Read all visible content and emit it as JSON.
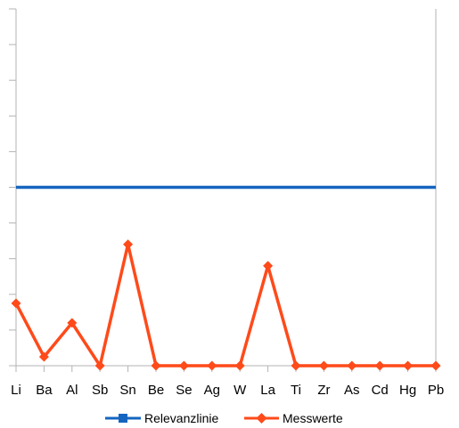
{
  "chart_data": {
    "type": "line",
    "categories": [
      "Li",
      "Ba",
      "Al",
      "Sb",
      "Sn",
      "Be",
      "Se",
      "Ag",
      "W",
      "La",
      "Ti",
      "Zr",
      "As",
      "Cd",
      "Hg",
      "Pb"
    ],
    "series": [
      {
        "name": "Relevanzlinie",
        "color": "#1565c0",
        "marker": "square",
        "values": [
          1,
          1,
          1,
          1,
          1,
          1,
          1,
          1,
          1,
          1,
          1,
          1,
          1,
          1,
          1,
          1
        ]
      },
      {
        "name": "Messwerte",
        "color": "#ff4a1a",
        "marker": "diamond",
        "values": [
          0.35,
          0.05,
          0.24,
          0.0,
          0.68,
          0.0,
          0.0,
          0.0,
          0.0,
          0.56,
          0.0,
          0.0,
          0.0,
          0.0,
          0.0,
          0.0
        ]
      }
    ],
    "ylim": [
      0,
      2
    ],
    "y_tick_count": 10,
    "y_tick_labels_shown": false,
    "grid": false,
    "legend_placement": "bottom",
    "title": "",
    "xlabel": "",
    "ylabel": ""
  }
}
